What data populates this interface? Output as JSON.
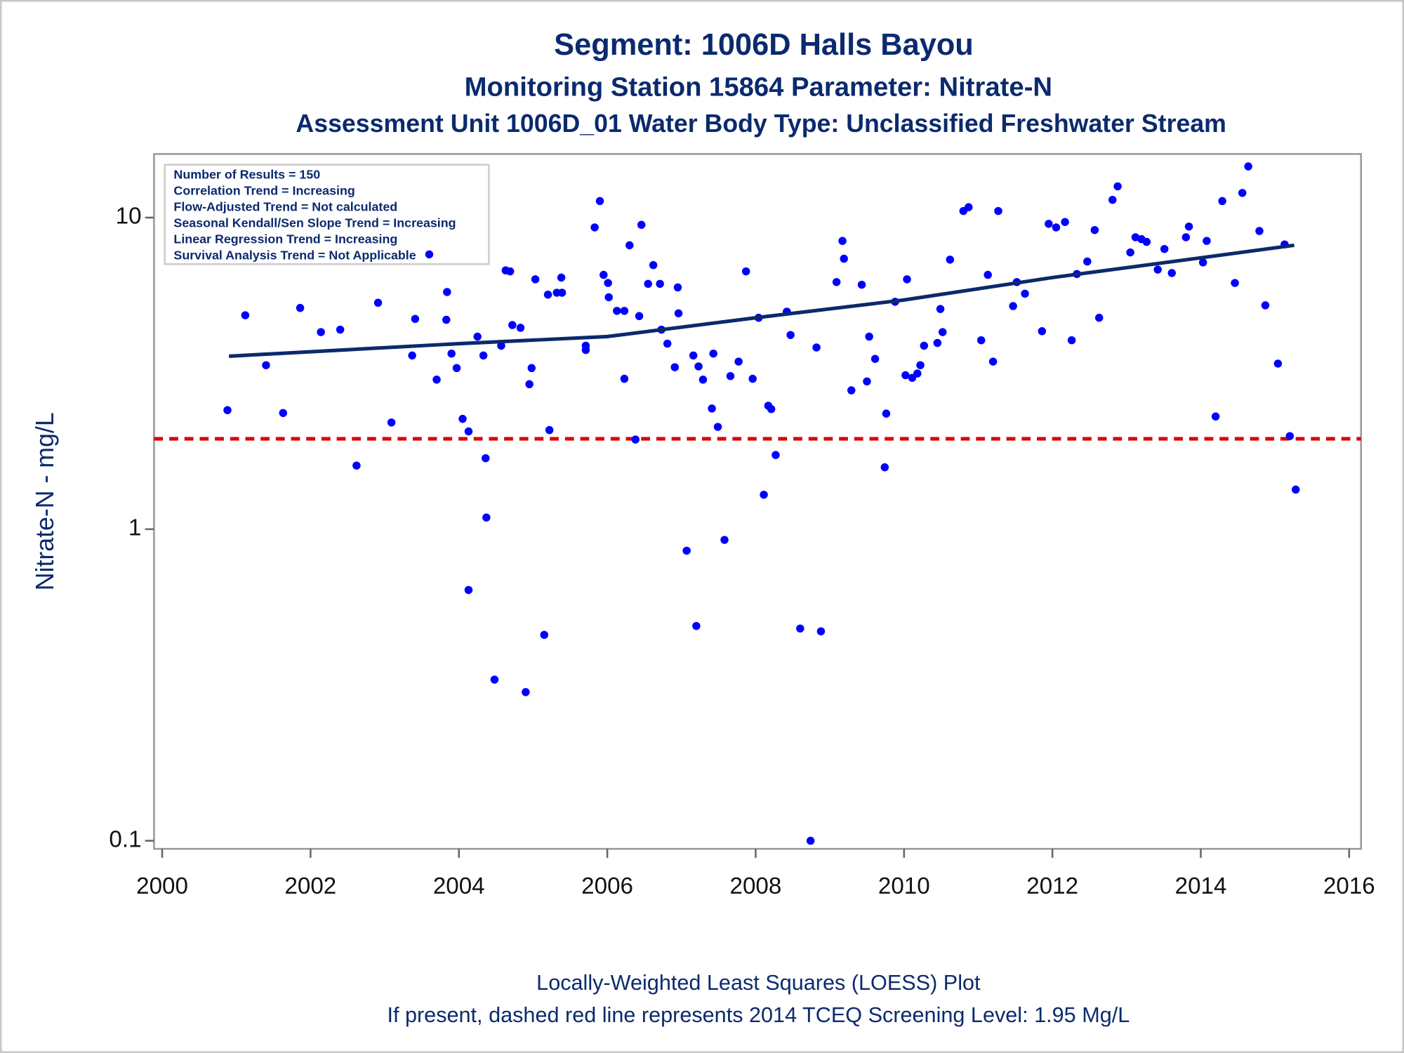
{
  "chart_data": {
    "type": "scatter",
    "title": "Segment: 1006D  Halls Bayou",
    "subtitles": [
      "Monitoring Station 15864 Parameter: Nitrate-N",
      "Assessment Unit 1006D_01   Water Body Type: Unclassified Freshwater Stream"
    ],
    "ylabel": "Nitrate-N - mg/L",
    "annotations": [
      "Number of Results = 150",
      "Correlation Trend = Increasing",
      "Flow-Adjusted Trend = Not calculated",
      "Seasonal Kendall/Sen Slope Trend = Increasing",
      "Linear Regression Trend = Increasing",
      "Survival Analysis Trend = Not Applicable"
    ],
    "footnotes": [
      "Locally-Weighted Least Squares (LOESS) Plot",
      "If present, dashed red line represents 2014 TCEQ Screening Level: 1.95 Mg/L"
    ],
    "xlim": [
      1999.89,
      2016.16
    ],
    "xticks": [
      2000,
      2002,
      2004,
      2006,
      2008,
      2010,
      2012,
      2014,
      2016
    ],
    "ylim": [
      0.0942,
      16.0
    ],
    "yticks": [
      0.1,
      1,
      10
    ],
    "ylog": true,
    "reference_line": {
      "value": 1.95,
      "color": "#dd0000"
    },
    "series": [
      {
        "type": "scatter",
        "color": "#0000ff",
        "x": [
          2000.88,
          2001.12,
          2001.4,
          2001.63,
          2001.86,
          2002.14,
          2002.4,
          2002.62,
          2002.91,
          2003.09,
          2003.37,
          2003.41,
          2003.6,
          2003.7,
          2003.84,
          2003.83,
          2003.9,
          2003.97,
          2004.05,
          2004.13,
          2004.13,
          2004.25,
          2004.33,
          2004.36,
          2004.37,
          2004.48,
          2004.57,
          2004.63,
          2004.69,
          2004.72,
          2004.83,
          2004.9,
          2004.95,
          2004.98,
          2005.03,
          2005.15,
          2005.2,
          2005.22,
          2005.32,
          2005.39,
          2005.38,
          2005.71,
          2005.71,
          2005.83,
          2005.9,
          2005.95,
          2006.01,
          2006.02,
          2006.13,
          2006.23,
          2006.23,
          2006.3,
          2006.38,
          2006.43,
          2006.46,
          2006.55,
          2006.62,
          2006.71,
          2006.73,
          2006.81,
          2006.91,
          2006.95,
          2006.96,
          2007.07,
          2007.16,
          2007.2,
          2007.23,
          2007.29,
          2007.41,
          2007.43,
          2007.49,
          2007.58,
          2007.66,
          2007.77,
          2007.87,
          2007.96,
          2008.04,
          2008.11,
          2008.17,
          2008.21,
          2008.27,
          2008.42,
          2008.47,
          2008.6,
          2008.74,
          2008.82,
          2008.88,
          2009.09,
          2009.17,
          2009.19,
          2009.29,
          2009.43,
          2009.5,
          2009.53,
          2009.61,
          2009.74,
          2009.76,
          2009.88,
          2010.02,
          2010.04,
          2010.11,
          2010.18,
          2010.22,
          2010.27,
          2010.45,
          2010.49,
          2010.52,
          2010.62,
          2010.8,
          2010.87,
          2011.04,
          2011.13,
          2011.2,
          2011.27,
          2011.47,
          2011.52,
          2011.63,
          2011.86,
          2011.95,
          2012.05,
          2012.17,
          2012.26,
          2012.33,
          2012.47,
          2012.57,
          2012.63,
          2012.81,
          2012.88,
          2013.05,
          2013.12,
          2013.2,
          2013.27,
          2013.42,
          2013.51,
          2013.61,
          2013.8,
          2013.84,
          2014.03,
          2014.08,
          2014.2,
          2014.29,
          2014.46,
          2014.56,
          2014.64,
          2014.79,
          2014.87,
          2015.04,
          2015.13,
          2015.2,
          2015.28
        ],
        "values": [
          2.41,
          4.86,
          3.36,
          2.36,
          5.13,
          4.29,
          4.37,
          1.6,
          5.33,
          2.2,
          3.61,
          4.73,
          7.62,
          3.02,
          5.77,
          4.7,
          3.66,
          3.29,
          2.26,
          2.06,
          0.638,
          4.15,
          3.61,
          1.69,
          1.09,
          0.329,
          3.88,
          6.77,
          6.72,
          4.52,
          4.43,
          0.3,
          2.92,
          3.29,
          6.34,
          0.458,
          5.66,
          2.08,
          5.74,
          5.74,
          6.42,
          3.88,
          3.76,
          9.3,
          11.3,
          6.55,
          6.17,
          5.55,
          5.02,
          5.02,
          3.04,
          8.15,
          1.94,
          4.83,
          9.48,
          6.13,
          7.04,
          6.13,
          4.37,
          3.94,
          3.31,
          5.97,
          4.93,
          0.853,
          3.61,
          0.489,
          3.33,
          3.02,
          2.44,
          3.66,
          2.13,
          0.924,
          3.1,
          3.45,
          6.72,
          3.04,
          4.77,
          1.29,
          2.49,
          2.43,
          1.73,
          4.99,
          4.2,
          0.48,
          0.1,
          3.83,
          0.47,
          6.21,
          8.42,
          7.38,
          2.79,
          6.09,
          2.98,
          4.15,
          3.52,
          1.58,
          2.35,
          5.37,
          3.12,
          6.34,
          3.06,
          3.16,
          3.36,
          3.88,
          3.96,
          5.09,
          4.29,
          7.33,
          10.5,
          10.8,
          4.04,
          6.55,
          3.45,
          10.5,
          5.2,
          6.21,
          5.7,
          4.32,
          9.55,
          9.3,
          9.68,
          4.04,
          6.59,
          7.23,
          9.12,
          4.77,
          11.4,
          12.6,
          7.73,
          8.65,
          8.53,
          8.36,
          6.81,
          7.93,
          6.64,
          8.65,
          9.36,
          7.18,
          8.42,
          2.3,
          11.3,
          6.17,
          12.0,
          14.6,
          9.06,
          5.23,
          3.4,
          8.2,
          1.99,
          1.34
        ]
      },
      {
        "type": "line",
        "color": "#0a2a6b",
        "x": [
          2000.9,
          2004.0,
          2006.0,
          2008.0,
          2010.0,
          2012.0,
          2014.0,
          2015.26
        ],
        "values": [
          3.59,
          3.94,
          4.15,
          4.77,
          5.44,
          6.42,
          7.43,
          8.15
        ]
      }
    ]
  }
}
